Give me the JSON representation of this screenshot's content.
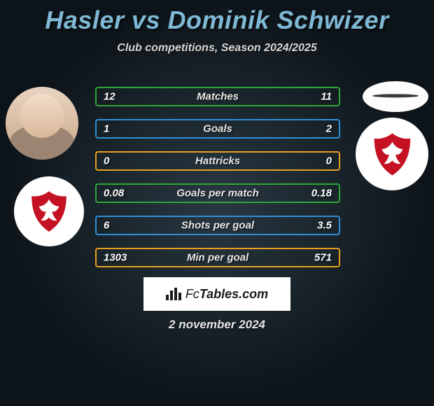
{
  "title": "Hasler vs Dominik Schwizer",
  "subtitle": "Club competitions, Season 2024/2025",
  "date": "2 november 2024",
  "footer_brand": "FcTables.com",
  "row_border_colors": [
    "#2fa63a",
    "#2e8fd6",
    "#e6a01f",
    "#2fa63a",
    "#2e8fd6",
    "#e6a01f"
  ],
  "rows": [
    {
      "left": "12",
      "label": "Matches",
      "right": "11"
    },
    {
      "left": "1",
      "label": "Goals",
      "right": "2"
    },
    {
      "left": "0",
      "label": "Hattricks",
      "right": "0"
    },
    {
      "left": "0.08",
      "label": "Goals per match",
      "right": "0.18"
    },
    {
      "left": "6",
      "label": "Shots per goal",
      "right": "3.5"
    },
    {
      "left": "1303",
      "label": "Min per goal",
      "right": "571"
    }
  ],
  "club_crest_color": "#c41224",
  "colors": {
    "title": "#7fb8d4",
    "text": "#e8e8e8",
    "background_inner": "#2a3842",
    "background_outer": "#0d1419"
  }
}
